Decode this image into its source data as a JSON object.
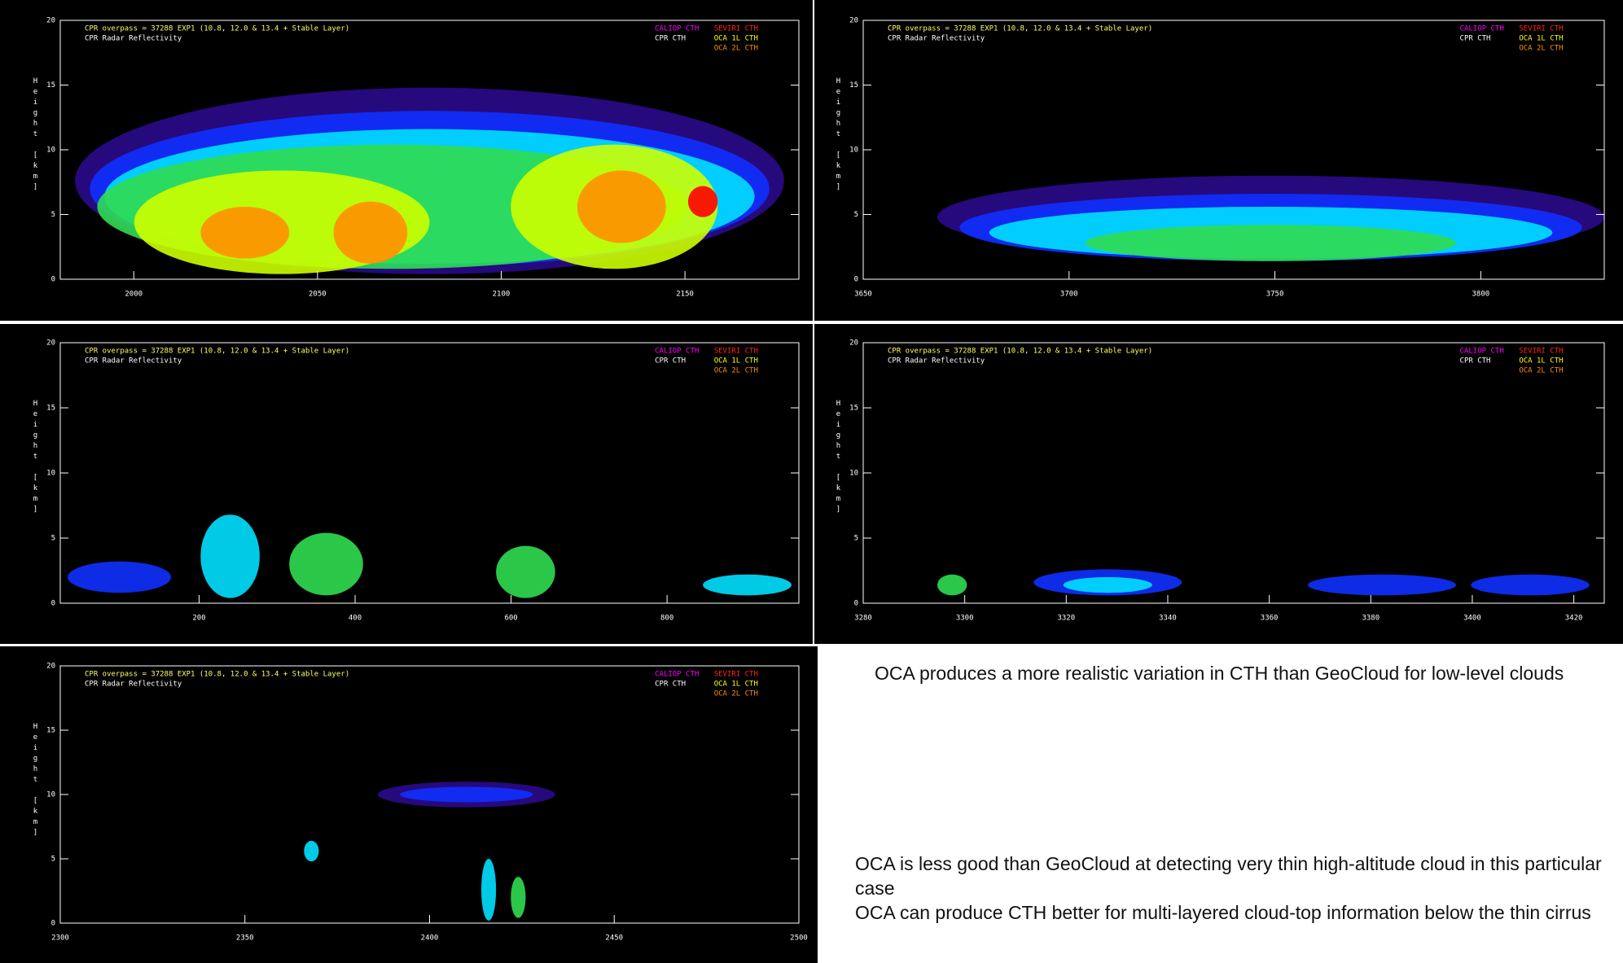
{
  "header": {
    "overpass": "CPR overpass = 37288  EXP1 (10.8, 12.0 & 13.4 + Stable Layer)",
    "product": "CPR Radar Reflectivity",
    "y_label": "Height [km]",
    "legend": [
      {
        "name": "CALIOP CTH",
        "color": "#ff00ff"
      },
      {
        "name": "SEVIRI CTH",
        "color": "#ff2020"
      },
      {
        "name": "CPR  CTH",
        "color": "#ffffff"
      },
      {
        "name": "OCA 1L CTH",
        "color": "#ffff00"
      },
      {
        "name": "OCA 2L CTH",
        "color": "#ff8c00"
      }
    ],
    "overpass_color": "#ffff66",
    "product_color": "#ffffff"
  },
  "panels": [
    {
      "xlim": [
        1980,
        2181
      ],
      "xticks": [
        2000,
        2050,
        2100,
        2150
      ],
      "ylim": [
        0,
        20
      ],
      "yticks": [
        0,
        5,
        10,
        15,
        20
      ]
    },
    {
      "xlim": [
        3650,
        3830
      ],
      "xticks": [
        3650,
        3700,
        3750,
        3800
      ],
      "ylim": [
        0,
        20
      ],
      "yticks": [
        0,
        5,
        10,
        15,
        20
      ]
    },
    {
      "xlim": [
        22,
        969
      ],
      "xticks": [
        200,
        400,
        600,
        800
      ],
      "ylim": [
        0,
        20
      ],
      "yticks": [
        0,
        5,
        10,
        15,
        20
      ]
    },
    {
      "xlim": [
        3280,
        3426
      ],
      "xticks": [
        3280,
        3300,
        3320,
        3340,
        3360,
        3380,
        3400,
        3420
      ],
      "ylim": [
        0,
        20
      ],
      "yticks": [
        0,
        5,
        10,
        15,
        20
      ]
    },
    {
      "xlim": [
        2300,
        2500
      ],
      "xticks": [
        2300,
        2350,
        2400,
        2450,
        2500
      ],
      "ylim": [
        0,
        20
      ],
      "yticks": [
        0,
        5,
        10,
        15,
        20
      ]
    }
  ],
  "notes": [
    "OCA produces a more realistic variation in CTH than GeoCloud for low-level clouds",
    "OCA is less good than GeoCloud at detecting very thin high-altitude cloud in this particular case",
    "OCA can produce CTH better for multi-layered cloud-top information below the thin cirrus"
  ]
}
